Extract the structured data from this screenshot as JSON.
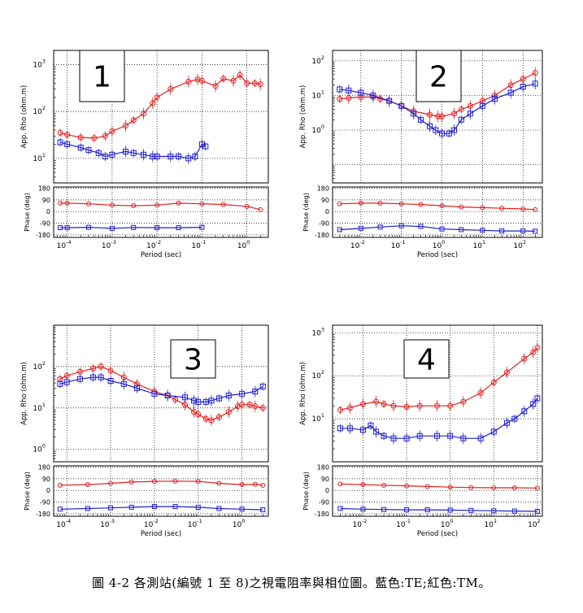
{
  "caption": "圖 4-2 各測站(編號 1 至 8)之視電阻率與相位圖。藍色:TE;紅色:TM。",
  "legend_colors": {
    "TE": "#1f1fd0",
    "TM": "#e02020"
  },
  "chart_data": [
    {
      "type": "scatter",
      "station_label": "1",
      "xlabel": "Period (sec)",
      "rho_ylabel": "App. Rho (ohm.m)",
      "phase_ylabel": "Phase (deg)",
      "x_scale": "log",
      "y_scale": "log",
      "xlim": [
        5e-05,
        3
      ],
      "rho_ylim": [
        3,
        2000
      ],
      "phase_ylim": [
        -200,
        190
      ],
      "phase_ticks": [
        180,
        90,
        0,
        -90,
        -180
      ],
      "x_ticks": [
        "10^-4",
        "10^-3",
        "10^-2",
        "10^-1",
        "10^0"
      ],
      "rho_ticks": [
        "10^1",
        "10^2",
        "10^3"
      ],
      "grid": true,
      "series": [
        {
          "color": "#e02020",
          "marker": "circle",
          "rho": [
            [
              7e-05,
              35
            ],
            [
              0.0001,
              32
            ],
            [
              0.0002,
              28
            ],
            [
              0.0004,
              27
            ],
            [
              0.0007,
              30
            ],
            [
              0.001,
              38
            ],
            [
              0.002,
              50
            ],
            [
              0.003,
              65
            ],
            [
              0.005,
              90
            ],
            [
              0.008,
              150
            ],
            [
              0.01,
              200
            ],
            [
              0.02,
              300
            ],
            [
              0.05,
              430
            ],
            [
              0.08,
              480
            ],
            [
              0.1,
              450
            ],
            [
              0.2,
              350
            ],
            [
              0.3,
              500
            ],
            [
              0.5,
              450
            ],
            [
              0.7,
              600
            ],
            [
              1,
              400
            ],
            [
              1.5,
              400
            ],
            [
              2,
              380
            ]
          ],
          "phase": [
            [
              7e-05,
              65
            ],
            [
              0.0001,
              65
            ],
            [
              0.0003,
              60
            ],
            [
              0.001,
              50
            ],
            [
              0.003,
              45
            ],
            [
              0.01,
              50
            ],
            [
              0.03,
              65
            ],
            [
              0.1,
              60
            ],
            [
              0.3,
              55
            ],
            [
              1,
              40
            ],
            [
              2,
              15
            ]
          ]
        },
        {
          "color": "#1f1fd0",
          "marker": "square",
          "rho": [
            [
              7e-05,
              22
            ],
            [
              0.0001,
              20
            ],
            [
              0.0002,
              17
            ],
            [
              0.0003,
              15
            ],
            [
              0.0005,
              13
            ],
            [
              0.0007,
              11
            ],
            [
              0.001,
              12
            ],
            [
              0.002,
              14
            ],
            [
              0.003,
              13
            ],
            [
              0.005,
              12
            ],
            [
              0.008,
              11
            ],
            [
              0.01,
              11
            ],
            [
              0.02,
              11
            ],
            [
              0.03,
              11
            ],
            [
              0.05,
              10
            ],
            [
              0.07,
              11
            ],
            [
              0.1,
              20
            ],
            [
              0.12,
              18
            ]
          ],
          "phase": [
            [
              7e-05,
              -125
            ],
            [
              0.0001,
              -125
            ],
            [
              0.0003,
              -122
            ],
            [
              0.001,
              -130
            ],
            [
              0.003,
              -123
            ],
            [
              0.01,
              -125
            ],
            [
              0.03,
              -125
            ],
            [
              0.1,
              -122
            ]
          ]
        }
      ]
    },
    {
      "type": "scatter",
      "station_label": "2",
      "xlabel": "Period (sec)",
      "rho_ylabel": "App. Rho (ohm.m)",
      "phase_ylabel": "Phase (deg)",
      "x_scale": "log",
      "y_scale": "log",
      "xlim": [
        0.002,
        300
      ],
      "rho_ylim": [
        0.03,
        200
      ],
      "phase_ylim": [
        -200,
        190
      ],
      "phase_ticks": [
        180,
        90,
        0,
        -90,
        -180
      ],
      "x_ticks": [
        "10^-2",
        "10^-1",
        "10^0",
        "10^1",
        "10^2"
      ],
      "rho_ticks": [
        "10^0",
        "10^1",
        "10^2"
      ],
      "grid": true,
      "series": [
        {
          "color": "#e02020",
          "marker": "circle",
          "rho": [
            [
              0.003,
              8
            ],
            [
              0.005,
              8.5
            ],
            [
              0.01,
              9
            ],
            [
              0.02,
              9
            ],
            [
              0.03,
              8
            ],
            [
              0.05,
              7
            ],
            [
              0.1,
              5
            ],
            [
              0.2,
              3.5
            ],
            [
              0.5,
              2.8
            ],
            [
              0.8,
              2.5
            ],
            [
              1,
              2.5
            ],
            [
              2,
              3
            ],
            [
              3,
              4
            ],
            [
              5,
              5
            ],
            [
              10,
              7
            ],
            [
              20,
              10
            ],
            [
              50,
              20
            ],
            [
              100,
              30
            ],
            [
              200,
              45
            ]
          ],
          "phase": [
            [
              0.003,
              60
            ],
            [
              0.01,
              65
            ],
            [
              0.03,
              65
            ],
            [
              0.1,
              60
            ],
            [
              0.3,
              55
            ],
            [
              1,
              45
            ],
            [
              3,
              35
            ],
            [
              10,
              30
            ],
            [
              30,
              25
            ],
            [
              100,
              20
            ],
            [
              200,
              15
            ]
          ]
        },
        {
          "color": "#1f1fd0",
          "marker": "square",
          "rho": [
            [
              0.003,
              15
            ],
            [
              0.005,
              14
            ],
            [
              0.01,
              12
            ],
            [
              0.02,
              10
            ],
            [
              0.05,
              7
            ],
            [
              0.1,
              5
            ],
            [
              0.2,
              3
            ],
            [
              0.3,
              2
            ],
            [
              0.5,
              1.3
            ],
            [
              0.7,
              1
            ],
            [
              1,
              0.8
            ],
            [
              1.5,
              0.8
            ],
            [
              2,
              1
            ],
            [
              3,
              2
            ],
            [
              5,
              3
            ],
            [
              10,
              5
            ],
            [
              20,
              8
            ],
            [
              50,
              12
            ],
            [
              100,
              18
            ],
            [
              200,
              22
            ]
          ],
          "phase": [
            [
              0.003,
              -140
            ],
            [
              0.01,
              -130
            ],
            [
              0.03,
              -120
            ],
            [
              0.1,
              -110
            ],
            [
              0.3,
              -115
            ],
            [
              1,
              -135
            ],
            [
              3,
              -140
            ],
            [
              10,
              -145
            ],
            [
              30,
              -150
            ],
            [
              100,
              -150
            ],
            [
              200,
              -152
            ]
          ]
        }
      ]
    },
    {
      "type": "scatter",
      "station_label": "3",
      "xlabel": "Period (sec)",
      "rho_ylabel": "App. Rho (ohm.m)",
      "phase_ylabel": "Phase (deg)",
      "x_scale": "log",
      "y_scale": "log",
      "xlim": [
        5e-05,
        4
      ],
      "rho_ylim": [
        0.5,
        1000
      ],
      "phase_ylim": [
        -200,
        190
      ],
      "phase_ticks": [
        180,
        90,
        0,
        -90,
        -180
      ],
      "x_ticks": [
        "10^-4",
        "10^-3",
        "10^-2",
        "10^-1",
        "10^0"
      ],
      "rho_ticks": [
        "10^0",
        "10^1",
        "10^2"
      ],
      "grid": true,
      "series": [
        {
          "color": "#e02020",
          "marker": "circle",
          "rho": [
            [
              7e-05,
              50
            ],
            [
              0.0001,
              60
            ],
            [
              0.0002,
              75
            ],
            [
              0.0004,
              90
            ],
            [
              0.0006,
              100
            ],
            [
              0.001,
              80
            ],
            [
              0.002,
              55
            ],
            [
              0.004,
              38
            ],
            [
              0.01,
              25
            ],
            [
              0.02,
              20
            ],
            [
              0.03,
              16
            ],
            [
              0.05,
              12
            ],
            [
              0.08,
              8
            ],
            [
              0.1,
              7
            ],
            [
              0.15,
              5.5
            ],
            [
              0.2,
              5
            ],
            [
              0.3,
              6
            ],
            [
              0.5,
              8
            ],
            [
              0.8,
              11
            ],
            [
              1,
              12
            ],
            [
              1.5,
              12
            ],
            [
              2,
              11
            ],
            [
              3,
              10
            ]
          ],
          "phase": [
            [
              7e-05,
              40
            ],
            [
              0.0003,
              45
            ],
            [
              0.001,
              55
            ],
            [
              0.003,
              65
            ],
            [
              0.01,
              70
            ],
            [
              0.03,
              72
            ],
            [
              0.1,
              70
            ],
            [
              0.3,
              55
            ],
            [
              1,
              45
            ],
            [
              2,
              48
            ],
            [
              3,
              40
            ]
          ]
        },
        {
          "color": "#1f1fd0",
          "marker": "square",
          "rho": [
            [
              7e-05,
              38
            ],
            [
              0.0001,
              42
            ],
            [
              0.0002,
              50
            ],
            [
              0.0004,
              55
            ],
            [
              0.0006,
              55
            ],
            [
              0.001,
              45
            ],
            [
              0.002,
              38
            ],
            [
              0.004,
              30
            ],
            [
              0.01,
              22
            ],
            [
              0.02,
              20
            ],
            [
              0.05,
              18
            ],
            [
              0.08,
              15
            ],
            [
              0.1,
              14
            ],
            [
              0.15,
              14
            ],
            [
              0.2,
              15
            ],
            [
              0.3,
              17
            ],
            [
              0.5,
              20
            ],
            [
              1,
              22
            ],
            [
              2,
              25
            ],
            [
              3,
              33
            ]
          ],
          "phase": [
            [
              7e-05,
              -145
            ],
            [
              0.0003,
              -140
            ],
            [
              0.001,
              -135
            ],
            [
              0.003,
              -130
            ],
            [
              0.01,
              -125
            ],
            [
              0.03,
              -125
            ],
            [
              0.1,
              -130
            ],
            [
              0.3,
              -140
            ],
            [
              1,
              -145
            ],
            [
              3,
              -150
            ]
          ]
        }
      ]
    },
    {
      "type": "scatter",
      "station_label": "4",
      "xlabel": "Period (sec)",
      "rho_ylabel": "App. Rho (ohm.m)",
      "phase_ylabel": "Phase (deg)",
      "x_scale": "log",
      "y_scale": "log",
      "xlim": [
        0.002,
        130
      ],
      "rho_ylim": [
        1,
        1500
      ],
      "phase_ylim": [
        -200,
        190
      ],
      "phase_ticks": [
        180,
        90,
        0,
        -90,
        -180
      ],
      "x_ticks": [
        "10^-2",
        "10^-1",
        "10^0",
        "10^1",
        "10^2"
      ],
      "rho_ticks": [
        "10^1",
        "10^2",
        "10^3"
      ],
      "grid": true,
      "series": [
        {
          "color": "#e02020",
          "marker": "circle",
          "rho": [
            [
              0.003,
              16
            ],
            [
              0.005,
              18
            ],
            [
              0.01,
              22
            ],
            [
              0.02,
              25
            ],
            [
              0.03,
              22
            ],
            [
              0.05,
              20
            ],
            [
              0.1,
              19
            ],
            [
              0.2,
              20
            ],
            [
              0.5,
              20
            ],
            [
              1,
              20
            ],
            [
              2,
              25
            ],
            [
              5,
              40
            ],
            [
              10,
              70
            ],
            [
              20,
              120
            ],
            [
              50,
              250
            ],
            [
              80,
              350
            ],
            [
              100,
              450
            ]
          ],
          "phase": [
            [
              0.003,
              50
            ],
            [
              0.01,
              45
            ],
            [
              0.03,
              40
            ],
            [
              0.1,
              35
            ],
            [
              0.3,
              30
            ],
            [
              1,
              25
            ],
            [
              3,
              22
            ],
            [
              10,
              20
            ],
            [
              30,
              20
            ],
            [
              100,
              18
            ]
          ]
        },
        {
          "color": "#1f1fd0",
          "marker": "square",
          "rho": [
            [
              0.003,
              6
            ],
            [
              0.005,
              6
            ],
            [
              0.01,
              5.5
            ],
            [
              0.015,
              7
            ],
            [
              0.02,
              5
            ],
            [
              0.03,
              4
            ],
            [
              0.05,
              3.5
            ],
            [
              0.1,
              3.5
            ],
            [
              0.2,
              4
            ],
            [
              0.5,
              4
            ],
            [
              1,
              4
            ],
            [
              2,
              3.5
            ],
            [
              5,
              3.5
            ],
            [
              10,
              5
            ],
            [
              20,
              8
            ],
            [
              30,
              10
            ],
            [
              50,
              15
            ],
            [
              80,
              22
            ],
            [
              100,
              30
            ]
          ],
          "phase": [
            [
              0.003,
              -140
            ],
            [
              0.01,
              -145
            ],
            [
              0.03,
              -148
            ],
            [
              0.1,
              -150
            ],
            [
              0.3,
              -150
            ],
            [
              1,
              -152
            ],
            [
              3,
              -155
            ],
            [
              10,
              -158
            ],
            [
              30,
              -160
            ],
            [
              100,
              -162
            ]
          ]
        }
      ]
    }
  ]
}
